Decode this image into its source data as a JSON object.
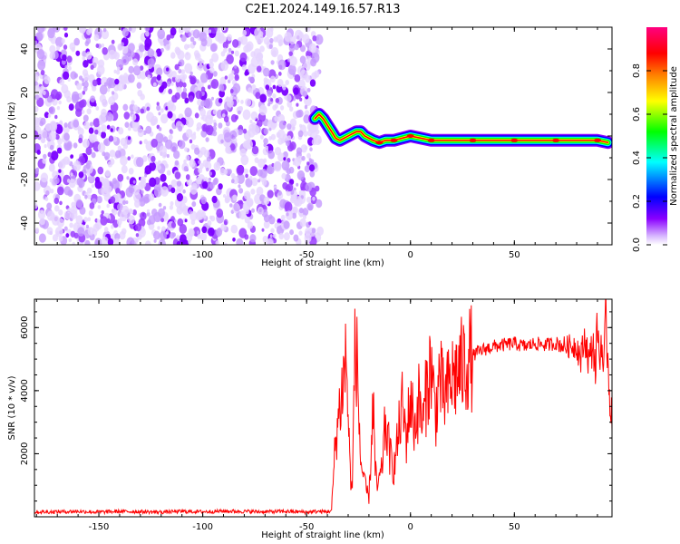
{
  "title": "C2E1.2024.149.16.57.R13",
  "chart_data": [
    {
      "type": "heatmap",
      "xlabel": "Height of straight line (km)",
      "ylabel": "Frequency (Hz)",
      "xlim": [
        -181,
        97
      ],
      "ylim": [
        -50,
        50
      ],
      "x_ticks": [
        -150,
        -100,
        -50,
        0,
        50
      ],
      "y_ticks": [
        -40,
        -20,
        0,
        20,
        40
      ],
      "colorbar": {
        "label": "Normalized spectral amplitude",
        "range": [
          0,
          1
        ],
        "ticks": [
          0.0,
          0.2,
          0.4,
          0.6,
          0.8
        ],
        "tick_labels": [
          "0.0",
          "0.2",
          "0.4",
          "0.6",
          "0.8"
        ],
        "colors": [
          "#ffffff",
          "#8a00ff",
          "#0000ff",
          "#00ffff",
          "#00ff00",
          "#ffff00",
          "#ff8000",
          "#ff0000",
          "#ff0080"
        ]
      },
      "noise_region": {
        "x_range": [
          -181,
          -46
        ],
        "y_range": [
          -50,
          50
        ]
      },
      "ridge": {
        "x": [
          -46,
          -45,
          -44,
          -42,
          -40,
          -38,
          -36,
          -34,
          -32,
          -30,
          -28,
          -26,
          -24,
          -22,
          -20,
          -18,
          -15,
          -12,
          -8,
          -4,
          0,
          5,
          10,
          20,
          30,
          40,
          50,
          60,
          70,
          80,
          90,
          95
        ],
        "y": [
          8,
          9,
          10,
          8,
          5,
          2,
          -1,
          -2,
          -1,
          0,
          1,
          2,
          2,
          0,
          -1,
          -2,
          -3,
          -2,
          -2,
          -1,
          0,
          -1,
          -2,
          -2,
          -2,
          -2,
          -2,
          -2,
          -2,
          -2,
          -2,
          -3
        ]
      }
    },
    {
      "type": "line",
      "xlabel": "Height of straight line (km)",
      "ylabel": "SNR (10 * v/v)",
      "xlim": [
        -181,
        97
      ],
      "ylim": [
        0,
        6900
      ],
      "x_ticks": [
        -150,
        -100,
        -50,
        0,
        50
      ],
      "y_ticks": [
        2000,
        4000,
        6000
      ],
      "color": "#ff0000",
      "series": [
        {
          "x": [
            -181,
            -170,
            -160,
            -150,
            -140,
            -130,
            -120,
            -110,
            -100,
            -90,
            -80,
            -70,
            -60,
            -50,
            -45,
            -40,
            -38,
            -36,
            -34,
            -32,
            -31,
            -30,
            -29,
            -28,
            -27,
            -26,
            -24,
            -22,
            -20,
            -19,
            -18,
            -17,
            -16,
            -14,
            -12,
            -10,
            -8,
            -6,
            -4,
            -2,
            0,
            2,
            4,
            6,
            8,
            10,
            12,
            14,
            16,
            18,
            20,
            22,
            24,
            26,
            28,
            30,
            32,
            35,
            40,
            45,
            50,
            55,
            60,
            65,
            70,
            75,
            80,
            82,
            84,
            86,
            88,
            89,
            90,
            91,
            92,
            93,
            94,
            95,
            96,
            97
          ],
          "y": [
            150,
            160,
            170,
            150,
            170,
            160,
            150,
            170,
            160,
            180,
            170,
            160,
            170,
            150,
            170,
            160,
            200,
            2500,
            3500,
            4500,
            5200,
            3200,
            1400,
            800,
            4900,
            5300,
            1800,
            1000,
            600,
            2000,
            3800,
            1500,
            900,
            1400,
            3000,
            2000,
            1500,
            2500,
            3500,
            2500,
            3800,
            2800,
            3700,
            2900,
            4200,
            4800,
            3200,
            4500,
            3700,
            4000,
            4400,
            4500,
            4700,
            4800,
            5000,
            5100,
            5200,
            5300,
            5400,
            5450,
            5500,
            5400,
            5500,
            5450,
            5500,
            5400,
            5450,
            5000,
            5700,
            4900,
            5500,
            4600,
            6200,
            4800,
            5800,
            4200,
            6500,
            5000,
            3800,
            3500
          ]
        }
      ]
    }
  ]
}
